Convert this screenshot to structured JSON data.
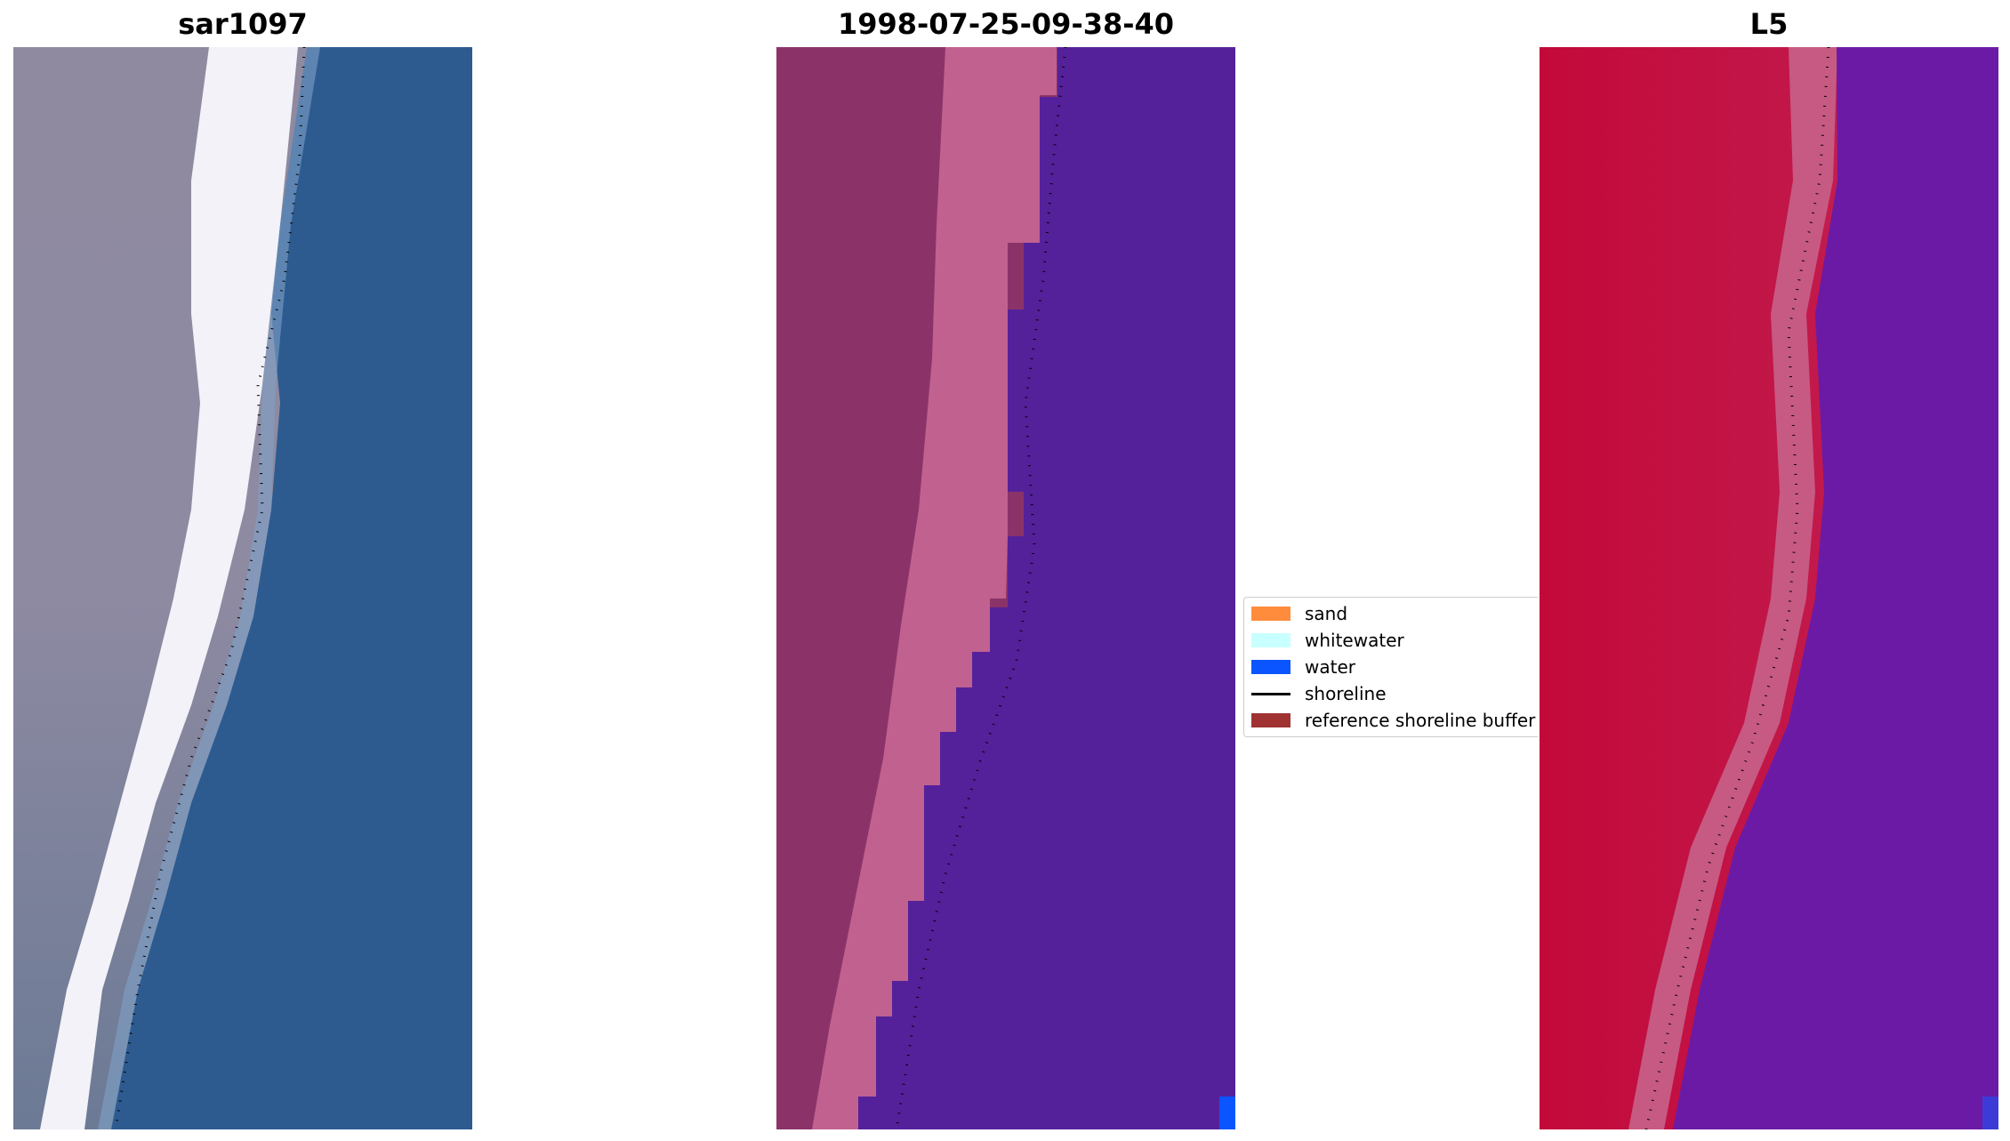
{
  "panels": [
    {
      "title": "sar1097",
      "kind": "rgb-image"
    },
    {
      "title": "1998-07-25-09-38-40",
      "kind": "classified-image"
    },
    {
      "title": "L5",
      "kind": "index-image"
    }
  ],
  "legend": {
    "items": [
      {
        "label": "sand",
        "color": "#ff8c3c",
        "type": "patch"
      },
      {
        "label": "whitewater",
        "color": "#c8ffff",
        "type": "patch"
      },
      {
        "label": "water",
        "color": "#0a55ff",
        "type": "patch"
      },
      {
        "label": "shoreline",
        "color": "#000000",
        "type": "line"
      },
      {
        "label": "reference shoreline buffer",
        "color": "#a03232",
        "type": "patch"
      }
    ]
  },
  "colors": {
    "sand_rgb": "#8f8ea4",
    "beach_white": "#f4f4fa",
    "ocean_blue": "#2d5a8e",
    "classified_land": "#8b3369",
    "classified_pink": "#c0618f",
    "classified_water": "#54219a",
    "index_red": "#c20b3f",
    "index_pink": "#c85378",
    "index_purple": "#6b1ba4"
  }
}
